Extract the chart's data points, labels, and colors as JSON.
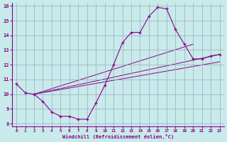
{
  "xlabel": "Windchill (Refroidissement éolien,°C)",
  "bg_color": "#c8eaea",
  "line_color": "#880088",
  "xlim": [
    -0.5,
    23.5
  ],
  "ylim": [
    7.8,
    16.2
  ],
  "xticks": [
    0,
    1,
    2,
    3,
    4,
    5,
    6,
    7,
    8,
    9,
    10,
    11,
    12,
    13,
    14,
    15,
    16,
    17,
    18,
    19,
    20,
    21,
    22,
    23
  ],
  "yticks": [
    8,
    9,
    10,
    11,
    12,
    13,
    14,
    15,
    16
  ],
  "grid_color": "#99aabb",
  "curve": {
    "x": [
      0,
      1,
      2,
      3,
      4,
      5,
      6,
      7,
      8,
      9,
      10,
      11,
      12,
      13,
      14,
      15,
      16,
      17,
      18,
      19,
      20,
      21,
      22,
      23
    ],
    "y": [
      10.7,
      10.1,
      10.0,
      9.5,
      8.8,
      8.5,
      8.5,
      8.3,
      8.3,
      9.4,
      10.6,
      12.0,
      13.5,
      14.2,
      14.2,
      15.3,
      15.9,
      15.8,
      14.4,
      13.4,
      12.4,
      12.4,
      12.6,
      12.7
    ]
  },
  "straight_lines": [
    {
      "x": [
        2,
        23
      ],
      "y": [
        10.0,
        12.7
      ]
    },
    {
      "x": [
        2,
        20
      ],
      "y": [
        10.0,
        13.4
      ]
    },
    {
      "x": [
        2,
        23
      ],
      "y": [
        10.0,
        12.2
      ]
    }
  ]
}
